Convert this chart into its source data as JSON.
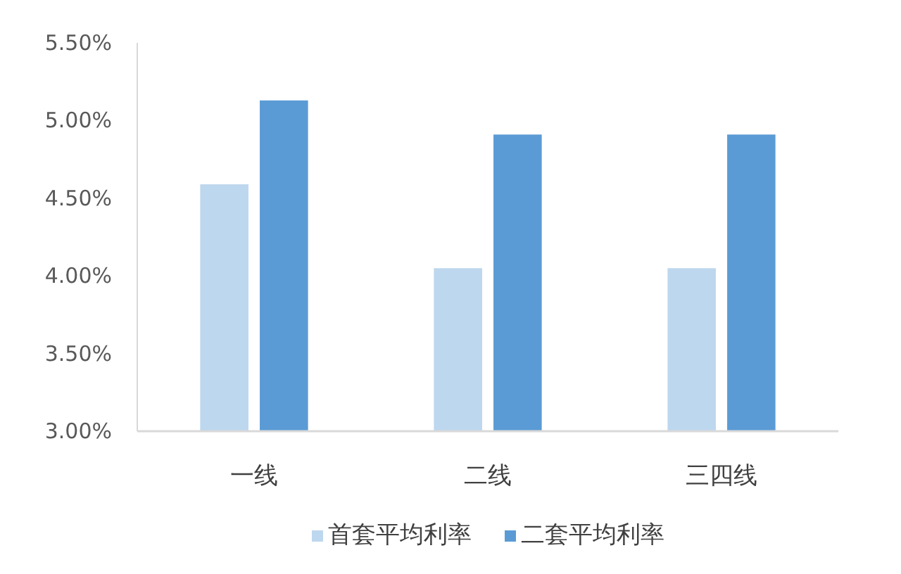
{
  "chart_data": {
    "type": "bar",
    "categories": [
      "一线",
      "二线",
      "三四线"
    ],
    "series": [
      {
        "name": "首套平均利率",
        "color": "#bdd7ee",
        "values": [
          4.59,
          4.05,
          4.05
        ]
      },
      {
        "name": "二套平均利率",
        "color": "#5b9bd5",
        "values": [
          5.13,
          4.91,
          4.91
        ]
      }
    ],
    "ylim": [
      3.0,
      5.5
    ],
    "yticks": [
      {
        "value": 3.0,
        "label": "3.00%"
      },
      {
        "value": 3.5,
        "label": "3.50%"
      },
      {
        "value": 4.0,
        "label": "4.00%"
      },
      {
        "value": 4.5,
        "label": "4.50%"
      },
      {
        "value": 5.0,
        "label": "5.00%"
      },
      {
        "value": 5.5,
        "label": "5.50%"
      }
    ],
    "grid": false,
    "legend": "bottom"
  }
}
